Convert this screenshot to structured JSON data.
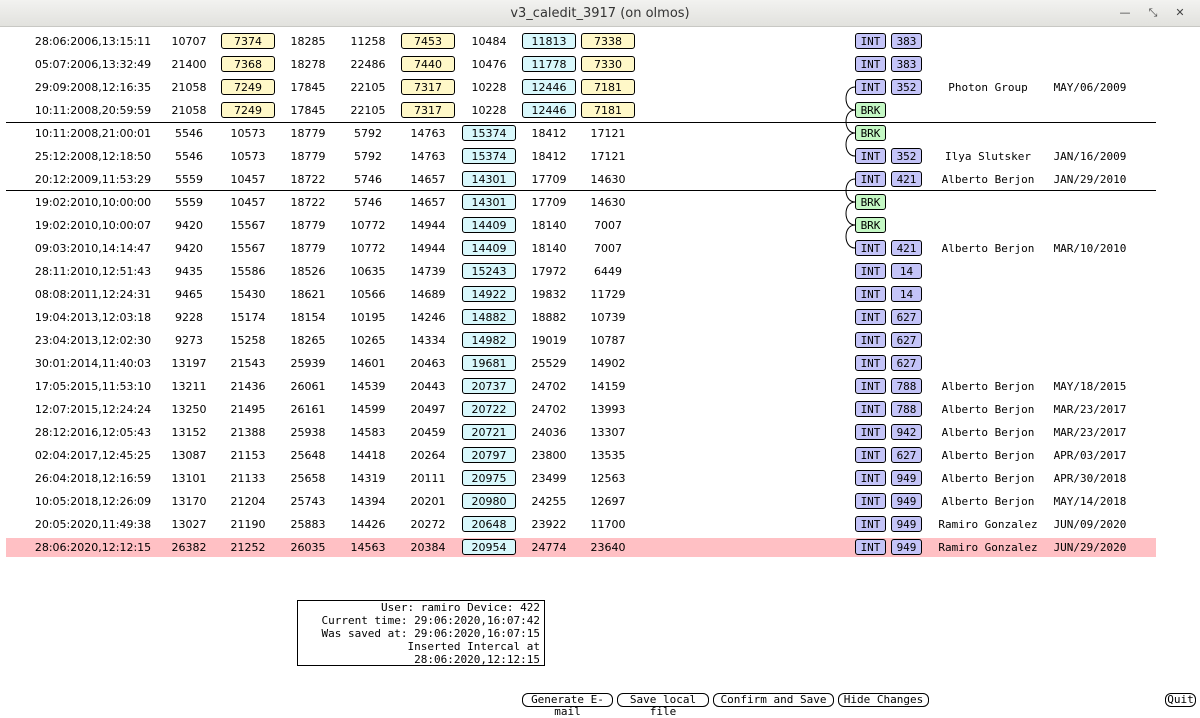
{
  "window": {
    "title": "v3_caledit_3917 (on olmos)",
    "controls": [
      "—",
      "⤡",
      "✕"
    ]
  },
  "table": {
    "rows": [
      {
        "date": "28:06:2006,13:15:11",
        "v": [
          "10707",
          "7374",
          "18285",
          "11258",
          "7453",
          "10484",
          "11813",
          "7338"
        ],
        "style": "A",
        "tag": "INT",
        "num": "383",
        "user": "",
        "ack": ""
      },
      {
        "date": "05:07:2006,13:32:49",
        "v": [
          "21400",
          "7368",
          "18278",
          "22486",
          "7440",
          "10476",
          "11778",
          "7330"
        ],
        "style": "A",
        "tag": "INT",
        "num": "383",
        "user": "",
        "ack": ""
      },
      {
        "date": "29:09:2008,12:16:35",
        "v": [
          "21058",
          "7249",
          "17845",
          "22105",
          "7317",
          "10228",
          "12446",
          "7181"
        ],
        "style": "A",
        "tag": "INT",
        "num": "352",
        "user": "Photon Group",
        "ack": "MAY/06/2009"
      },
      {
        "date": "10:11:2008,20:59:59",
        "v": [
          "21058",
          "7249",
          "17845",
          "22105",
          "7317",
          "10228",
          "12446",
          "7181"
        ],
        "style": "A",
        "tag": "BRK",
        "num": "",
        "user": "",
        "ack": ""
      },
      {
        "date": "10:11:2008,21:00:01",
        "v": [
          "5546",
          "10573",
          "18779",
          "5792",
          "14763",
          "15374",
          "18412",
          "17121"
        ],
        "style": "B",
        "tag": "BRK",
        "num": "",
        "user": "",
        "ack": ""
      },
      {
        "date": "25:12:2008,12:18:50",
        "v": [
          "5546",
          "10573",
          "18779",
          "5792",
          "14763",
          "15374",
          "18412",
          "17121"
        ],
        "style": "B",
        "tag": "INT",
        "num": "352",
        "user": "Ilya Slutsker",
        "ack": "JAN/16/2009"
      },
      {
        "date": "20:12:2009,11:53:29",
        "v": [
          "5559",
          "10457",
          "18722",
          "5746",
          "14657",
          "14301",
          "17709",
          "14630"
        ],
        "style": "B",
        "tag": "INT",
        "num": "421",
        "user": "Alberto Berjon",
        "ack": "JAN/29/2010"
      },
      {
        "date": "19:02:2010,10:00:00",
        "v": [
          "5559",
          "10457",
          "18722",
          "5746",
          "14657",
          "14301",
          "17709",
          "14630"
        ],
        "style": "B",
        "tag": "BRK",
        "num": "",
        "user": "",
        "ack": ""
      },
      {
        "date": "19:02:2010,10:00:07",
        "v": [
          "9420",
          "15567",
          "18779",
          "10772",
          "14944",
          "14409",
          "18140",
          "7007"
        ],
        "style": "B",
        "tag": "BRK",
        "num": "",
        "user": "",
        "ack": ""
      },
      {
        "date": "09:03:2010,14:14:47",
        "v": [
          "9420",
          "15567",
          "18779",
          "10772",
          "14944",
          "14409",
          "18140",
          "7007"
        ],
        "style": "B",
        "tag": "INT",
        "num": "421",
        "user": "Alberto Berjon",
        "ack": "MAR/10/2010"
      },
      {
        "date": "28:11:2010,12:51:43",
        "v": [
          "9435",
          "15586",
          "18526",
          "10635",
          "14739",
          "15243",
          "17972",
          "6449"
        ],
        "style": "B",
        "tag": "INT",
        "num": "14",
        "user": "",
        "ack": ""
      },
      {
        "date": "08:08:2011,12:24:31",
        "v": [
          "9465",
          "15430",
          "18621",
          "10566",
          "14689",
          "14922",
          "19832",
          "11729"
        ],
        "style": "B",
        "tag": "INT",
        "num": "14",
        "user": "",
        "ack": ""
      },
      {
        "date": "19:04:2013,12:03:18",
        "v": [
          "9228",
          "15174",
          "18154",
          "10195",
          "14246",
          "14882",
          "18882",
          "10739"
        ],
        "style": "B",
        "tag": "INT",
        "num": "627",
        "user": "",
        "ack": ""
      },
      {
        "date": "23:04:2013,12:02:30",
        "v": [
          "9273",
          "15258",
          "18265",
          "10265",
          "14334",
          "14982",
          "19019",
          "10787"
        ],
        "style": "B",
        "tag": "INT",
        "num": "627",
        "user": "",
        "ack": ""
      },
      {
        "date": "30:01:2014,11:40:03",
        "v": [
          "13197",
          "21543",
          "25939",
          "14601",
          "20463",
          "19681",
          "25529",
          "14902"
        ],
        "style": "B",
        "tag": "INT",
        "num": "627",
        "user": "",
        "ack": ""
      },
      {
        "date": "17:05:2015,11:53:10",
        "v": [
          "13211",
          "21436",
          "26061",
          "14539",
          "20443",
          "20737",
          "24702",
          "14159"
        ],
        "style": "B",
        "tag": "INT",
        "num": "788",
        "user": "Alberto Berjon",
        "ack": "MAY/18/2015"
      },
      {
        "date": "12:07:2015,12:24:24",
        "v": [
          "13250",
          "21495",
          "26161",
          "14599",
          "20497",
          "20722",
          "24702",
          "13993"
        ],
        "style": "B",
        "tag": "INT",
        "num": "788",
        "user": "Alberto Berjon",
        "ack": "MAR/23/2017"
      },
      {
        "date": "28:12:2016,12:05:43",
        "v": [
          "13152",
          "21388",
          "25938",
          "14583",
          "20459",
          "20721",
          "24036",
          "13307"
        ],
        "style": "B",
        "tag": "INT",
        "num": "942",
        "user": "Alberto Berjon",
        "ack": "MAR/23/2017"
      },
      {
        "date": "02:04:2017,12:45:25",
        "v": [
          "13087",
          "21153",
          "25648",
          "14418",
          "20264",
          "20797",
          "23800",
          "13535"
        ],
        "style": "B",
        "tag": "INT",
        "num": "627",
        "user": "Alberto Berjon",
        "ack": "APR/03/2017"
      },
      {
        "date": "26:04:2018,12:16:59",
        "v": [
          "13101",
          "21133",
          "25658",
          "14319",
          "20111",
          "20975",
          "23499",
          "12563"
        ],
        "style": "B",
        "tag": "INT",
        "num": "949",
        "user": "Alberto Berjon",
        "ack": "APR/30/2018"
      },
      {
        "date": "10:05:2018,12:26:09",
        "v": [
          "13170",
          "21204",
          "25743",
          "14394",
          "20201",
          "20980",
          "24255",
          "12697"
        ],
        "style": "B",
        "tag": "INT",
        "num": "949",
        "user": "Alberto Berjon",
        "ack": "MAY/14/2018"
      },
      {
        "date": "20:05:2020,11:49:38",
        "v": [
          "13027",
          "21190",
          "25883",
          "14426",
          "20272",
          "20648",
          "23922",
          "11700"
        ],
        "style": "B",
        "tag": "INT",
        "num": "949",
        "user": "Ramiro Gonzalez",
        "ack": "JUN/09/2020"
      },
      {
        "date": "28:06:2020,12:12:15",
        "v": [
          "26382",
          "21252",
          "26035",
          "14563",
          "20384",
          "20954",
          "24774",
          "23640"
        ],
        "style": "B",
        "tag": "INT",
        "num": "949",
        "user": "Ramiro Gonzalez",
        "ack": "JUN/29/2020",
        "highlight": true
      }
    ]
  },
  "info": {
    "user_line": "User: ramiro Device: 422",
    "current_time": "Current time: 29:06:2020,16:07:42",
    "saved_at": "Was saved at: 29:06:2020,16:07:15",
    "inserted": "Inserted Intercal at 28:06:2020,12:12:15"
  },
  "buttons": {
    "email": "Generate E-mail",
    "save_local": "Save local file",
    "confirm": "Confirm and Save",
    "hide": "Hide Changes",
    "quit": "Quit"
  }
}
